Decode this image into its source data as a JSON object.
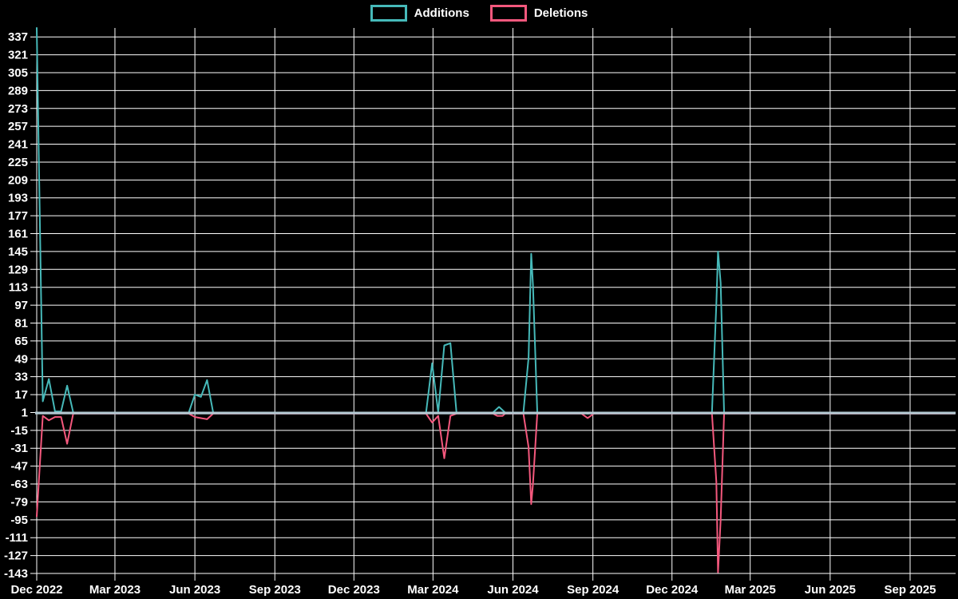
{
  "legend": {
    "additions_label": "Additions",
    "deletions_label": "Deletions"
  },
  "colors": {
    "background": "#000000",
    "grid": "#ffffff",
    "text": "#ffffff",
    "additions": "#46b9b9",
    "deletions": "#f4587d",
    "zero_baseline": "#b2c8d1"
  },
  "chart_data": {
    "type": "line",
    "title": "",
    "legend_position": "top",
    "grid": true,
    "y_axis": {
      "min": -143,
      "max": 345,
      "tick_step": 16,
      "ticks": [
        337,
        321,
        305,
        289,
        273,
        257,
        241,
        225,
        209,
        193,
        177,
        161,
        145,
        129,
        113,
        97,
        81,
        65,
        49,
        33,
        17,
        1,
        -15,
        -31,
        -47,
        -63,
        -79,
        -95,
        -111,
        -127,
        -143
      ]
    },
    "x_axis": {
      "tick_dates": [
        "2022-12-18",
        "2023-03-18",
        "2023-06-18",
        "2023-09-18",
        "2023-12-18",
        "2024-03-18",
        "2024-06-18",
        "2024-09-18",
        "2024-12-18",
        "2025-03-18",
        "2025-06-18",
        "2025-09-18"
      ],
      "tick_labels": [
        "Dec 2022",
        "Mar 2023",
        "Jun 2023",
        "Sep 2023",
        "Dec 2023",
        "Mar 2024",
        "Jun 2024",
        "Sep 2024",
        "Dec 2024",
        "Mar 2025",
        "Jun 2025",
        "Sep 2025"
      ],
      "end_date": "2025-11-08"
    },
    "series": [
      {
        "name": "Additions",
        "color": "#46b9b9",
        "points": [
          [
            "2022-12-18",
            345
          ],
          [
            "2022-12-25",
            11
          ],
          [
            "2023-01-01",
            31
          ],
          [
            "2023-01-08",
            2
          ],
          [
            "2023-01-15",
            2
          ],
          [
            "2023-01-22",
            25
          ],
          [
            "2023-01-29",
            1
          ],
          [
            "2023-06-11",
            1
          ],
          [
            "2023-06-18",
            17
          ],
          [
            "2023-06-25",
            15
          ],
          [
            "2023-07-02",
            30
          ],
          [
            "2023-07-09",
            1
          ],
          [
            "2024-03-10",
            1
          ],
          [
            "2024-03-17",
            45
          ],
          [
            "2024-03-24",
            1
          ],
          [
            "2024-03-31",
            61
          ],
          [
            "2024-04-07",
            63
          ],
          [
            "2024-04-14",
            1
          ],
          [
            "2024-05-26",
            1
          ],
          [
            "2024-06-02",
            6
          ],
          [
            "2024-06-09",
            1
          ],
          [
            "2024-06-30",
            1
          ],
          [
            "2024-07-06",
            50
          ],
          [
            "2024-07-09",
            143
          ],
          [
            "2024-07-11",
            115
          ],
          [
            "2024-07-16",
            1
          ],
          [
            "2024-09-05",
            1
          ],
          [
            "2024-09-12",
            0
          ],
          [
            "2024-09-19",
            1
          ],
          [
            "2025-02-02",
            1
          ],
          [
            "2025-02-07",
            98
          ],
          [
            "2025-02-09",
            145
          ],
          [
            "2025-02-12",
            117
          ],
          [
            "2025-02-16",
            1
          ],
          [
            "2025-11-08",
            1
          ]
        ]
      },
      {
        "name": "Deletions",
        "color": "#f4587d",
        "points": [
          [
            "2022-12-18",
            -92
          ],
          [
            "2022-12-25",
            -2
          ],
          [
            "2023-01-01",
            -6
          ],
          [
            "2023-01-08",
            -3
          ],
          [
            "2023-01-15",
            -3
          ],
          [
            "2023-01-22",
            -27
          ],
          [
            "2023-01-29",
            0
          ],
          [
            "2023-06-11",
            0
          ],
          [
            "2023-06-18",
            -3
          ],
          [
            "2023-06-25",
            -4
          ],
          [
            "2023-07-02",
            -5
          ],
          [
            "2023-07-09",
            0
          ],
          [
            "2024-03-10",
            0
          ],
          [
            "2024-03-17",
            -8
          ],
          [
            "2024-03-24",
            -2
          ],
          [
            "2024-03-31",
            -40
          ],
          [
            "2024-04-07",
            -2
          ],
          [
            "2024-04-14",
            0
          ],
          [
            "2024-05-26",
            0
          ],
          [
            "2024-05-31",
            -2
          ],
          [
            "2024-06-06",
            -2
          ],
          [
            "2024-06-09",
            0
          ],
          [
            "2024-06-30",
            0
          ],
          [
            "2024-07-06",
            -30
          ],
          [
            "2024-07-09",
            -81
          ],
          [
            "2024-07-11",
            -63
          ],
          [
            "2024-07-16",
            0
          ],
          [
            "2024-09-05",
            0
          ],
          [
            "2024-09-12",
            -4
          ],
          [
            "2024-09-19",
            0
          ],
          [
            "2025-02-02",
            0
          ],
          [
            "2025-02-07",
            -61
          ],
          [
            "2025-02-09",
            -142
          ],
          [
            "2025-02-12",
            -95
          ],
          [
            "2025-02-16",
            0
          ],
          [
            "2025-11-08",
            0
          ]
        ]
      }
    ]
  }
}
